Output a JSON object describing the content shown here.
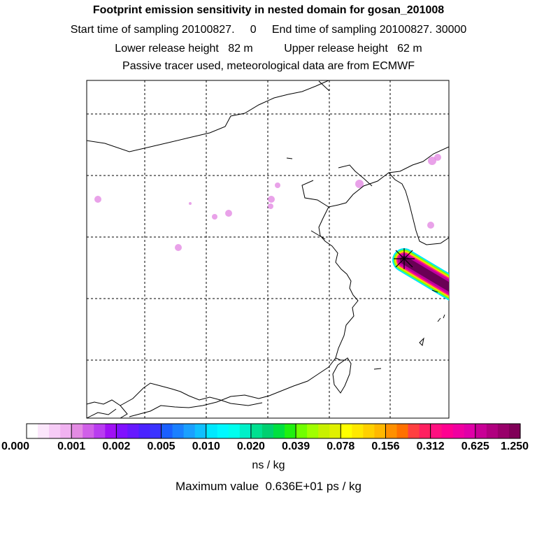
{
  "title": "Footprint emission sensitivity in nested domain for gosan_201008",
  "sampling": {
    "start_label": "Start time of sampling",
    "start_value": "20100827.     0",
    "end_label": "End time of sampling",
    "end_value": "20100827. 30000"
  },
  "release": {
    "lower_label": "Lower release height",
    "lower_value": "82 m",
    "upper_label": "Upper release height",
    "upper_value": "62 m"
  },
  "tracer_note": "Passive tracer used, meteorological data are from ECMWF",
  "colorbar": {
    "units": "ns / kg",
    "tick_labels": [
      "0.000",
      "0.001",
      "0.002",
      "0.005",
      "0.010",
      "0.020",
      "0.039",
      "0.078",
      "0.156",
      "0.312",
      "0.625",
      "1.250"
    ],
    "colors": [
      [
        "#ffffff",
        "#fbe6fb",
        "#f6ccf6",
        "#f0b2f0"
      ],
      [
        "#e38be3",
        "#d060e8",
        "#b93cf0",
        "#a010f5"
      ],
      [
        "#8010ff",
        "#6618ff",
        "#4a22ff",
        "#3a32ff"
      ],
      [
        "#1a60ff",
        "#1a80ff",
        "#1aa0ff",
        "#10c0ff"
      ],
      [
        "#00e8ff",
        "#00f8ff",
        "#00ffee",
        "#00f0c8"
      ],
      [
        "#00e090",
        "#00d070",
        "#00e040",
        "#20f010"
      ],
      [
        "#70ff00",
        "#a0ff00",
        "#c8f000",
        "#e0f000"
      ],
      [
        "#ffff00",
        "#ffe800",
        "#ffd000",
        "#ffb800"
      ],
      [
        "#ff9000",
        "#ff7000",
        "#ff4040",
        "#ff2060"
      ],
      [
        "#ff1080",
        "#ff0090",
        "#f000a0",
        "#e000a8"
      ],
      [
        "#c80096",
        "#b0007f",
        "#98006a",
        "#800058"
      ]
    ]
  },
  "maximum": {
    "label": "Maximum value",
    "value": "0.636E+01 ps / kg"
  },
  "map": {
    "region": "East Asia",
    "receptor": "gosan",
    "plume_colors": [
      "#6a0055",
      "#c000a0",
      "#ff1090",
      "#ffd000",
      "#80ff00",
      "#00e8ff"
    ],
    "spot_color": "#e38be3"
  }
}
